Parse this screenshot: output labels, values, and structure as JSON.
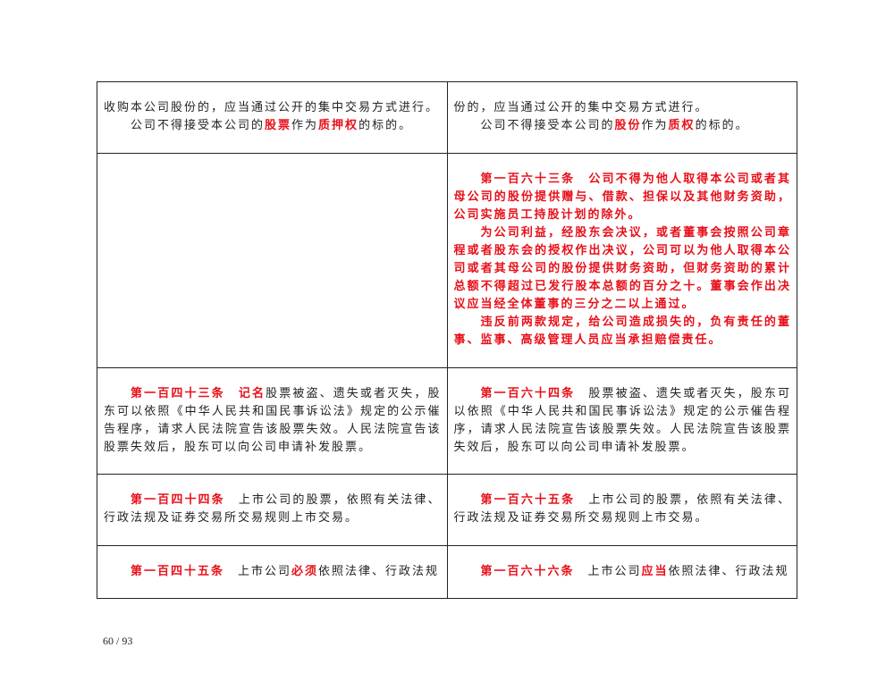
{
  "table": {
    "rows": [
      [
        [
          {
            "continued": true,
            "segments": [
              {
                "text": "收购本公司股份的，应当通过公开的集中交易方式进行。"
              }
            ]
          },
          {
            "segments": [
              {
                "text": "公司不得接受本公司的"
              },
              {
                "text": "股票",
                "red": true
              },
              {
                "text": "作为"
              },
              {
                "text": "质押权",
                "red": true
              },
              {
                "text": "的标的。"
              }
            ]
          }
        ],
        [
          {
            "continued": true,
            "segments": [
              {
                "text": "份的，应当通过公开的集中交易方式进行。"
              }
            ]
          },
          {
            "segments": [
              {
                "text": "公司不得接受本公司的"
              },
              {
                "text": "股份",
                "red": true
              },
              {
                "text": "作为"
              },
              {
                "text": "质权",
                "red": true
              },
              {
                "text": "的标的。"
              }
            ]
          }
        ]
      ],
      [
        [],
        [
          {
            "segments": [
              {
                "text": "第一百六十三条　公司不得为他人取得本公司或者其母公司的股份提供赠与、借款、担保以及其他财务资助，公司实施员工持股计划的除外。",
                "red": true
              }
            ]
          },
          {
            "segments": [
              {
                "text": "为公司利益，经股东会决议，或者董事会按照公司章程或者股东会的授权作出决议，公司可以为他人取得本公司或者其母公司的股份提供财务资助，但财务资助的累计总额不得超过已发行股本总额的百分之十。董事会作出决议应当经全体董事的三分之二以上通过。",
                "red": true
              }
            ]
          },
          {
            "segments": [
              {
                "text": "违反前两款规定，给公司造成损失的，负有责任的董事、监事、高级管理人员应当承担赔偿责任。",
                "red": true
              }
            ]
          }
        ]
      ],
      [
        [
          {
            "segments": [
              {
                "text": "第一百四十三条　",
                "red": true
              },
              {
                "text": "记名",
                "red": true
              },
              {
                "text": "股票被盗、遗失或者灭失，股东可以依照《中华人民共和国民事诉讼法》规定的公示催告程序，请求人民法院宣告该股票失效。人民法院宣告该股票失效后，股东可以向公司申请补发股票。"
              }
            ]
          }
        ],
        [
          {
            "segments": [
              {
                "text": "第一百六十四条",
                "red": true
              },
              {
                "text": "　股票被盗、遗失或者灭失，股东可以依照《中华人民共和国民事诉讼法》规定的公示催告程序，请求人民法院宣告该股票失效。人民法院宣告该股票失效后，股东可以向公司申请补发股票。"
              }
            ]
          }
        ]
      ],
      [
        [
          {
            "segments": [
              {
                "text": "第一百四十四条",
                "red": true
              },
              {
                "text": "　上市公司的股票，依照有关法律、行政法规及证券交易所交易规则上市交易。"
              }
            ]
          }
        ],
        [
          {
            "segments": [
              {
                "text": "第一百六十五条",
                "red": true
              },
              {
                "text": "　上市公司的股票，依照有关法律、行政法规及证券交易所交易规则上市交易。"
              }
            ]
          }
        ]
      ],
      [
        [
          {
            "segments": [
              {
                "text": "第一百四十五条",
                "red": true
              },
              {
                "text": "　上市公司"
              },
              {
                "text": "必须",
                "red": true
              },
              {
                "text": "依照法律、行政法规"
              }
            ]
          }
        ],
        [
          {
            "segments": [
              {
                "text": "第一百六十六条",
                "red": true
              },
              {
                "text": "　上市公司"
              },
              {
                "text": "应当",
                "red": true
              },
              {
                "text": "依照法律、行政法规"
              }
            ]
          }
        ]
      ]
    ]
  },
  "footer": {
    "page": "60 / 93"
  }
}
